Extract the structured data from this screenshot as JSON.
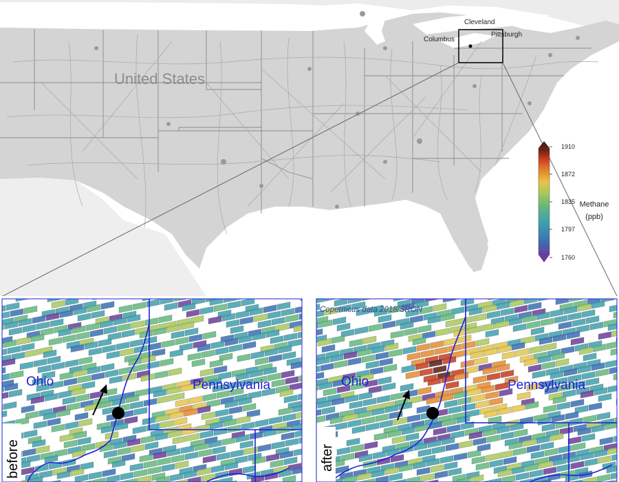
{
  "overview_map": {
    "country_label": "United States",
    "cities": [
      "Cleveland",
      "Columbus",
      "Pittsburgh"
    ]
  },
  "colorbar": {
    "title_line1": "Methane",
    "title_line2": "(ppb)",
    "ticks": [
      "1910",
      "1872",
      "1835",
      "1797",
      "1760"
    ],
    "min_value": 1760,
    "max_value": 1910,
    "colors": [
      "#6a3d9a",
      "#3a6fb5",
      "#3f9fae",
      "#63b77d",
      "#a9c85a",
      "#e6c44a",
      "#e68a2e",
      "#c63b1f",
      "#5a1a12"
    ]
  },
  "panel_before": {
    "side_label": "before",
    "state_ohio": "Ohio",
    "state_pennsylvania": "Pennsylvania"
  },
  "panel_after": {
    "side_label": "after",
    "state_ohio": "Ohio",
    "state_pennsylvania": "Pennsylvania",
    "credit": "Copernicus data 2018/SRON"
  },
  "colors": {
    "land": "#d9d9d9",
    "water": "#ffffff",
    "roads": "#a6a6a6",
    "borders": "#1f1fd6",
    "rivers": "#1f1fd6"
  }
}
